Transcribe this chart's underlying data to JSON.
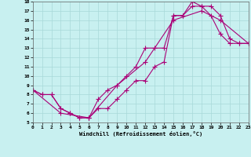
{
  "xlabel": "Windchill (Refroidissement éolien,°C)",
  "bg_color": "#c8f0f0",
  "line_color": "#aa0077",
  "xlim": [
    0,
    23
  ],
  "ylim": [
    5,
    18
  ],
  "xticks": [
    0,
    1,
    2,
    3,
    4,
    5,
    6,
    7,
    8,
    9,
    10,
    11,
    12,
    13,
    14,
    15,
    16,
    17,
    18,
    19,
    20,
    21,
    22,
    23
  ],
  "yticks": [
    5,
    6,
    7,
    8,
    9,
    10,
    11,
    12,
    13,
    14,
    15,
    16,
    17,
    18
  ],
  "line1_x": [
    0,
    1,
    2,
    3,
    4,
    5,
    6,
    7,
    8,
    9,
    10,
    11,
    12,
    13,
    14,
    15,
    16,
    17,
    18,
    19,
    20,
    21,
    22,
    23
  ],
  "line1_y": [
    8.5,
    8.0,
    8.0,
    6.5,
    6.0,
    5.5,
    5.5,
    6.5,
    6.5,
    7.5,
    8.5,
    9.5,
    9.5,
    11.0,
    11.5,
    16.5,
    16.5,
    18.0,
    17.5,
    17.5,
    16.5,
    14.0,
    13.5,
    13.5
  ],
  "line2_x": [
    0,
    1,
    2,
    3,
    4,
    5,
    6,
    7,
    8,
    9,
    10,
    11,
    12,
    13,
    14,
    15,
    16,
    17,
    18,
    19,
    20,
    21,
    22,
    23
  ],
  "line2_y": [
    8.5,
    8.0,
    8.0,
    6.5,
    6.0,
    5.5,
    5.5,
    7.5,
    8.5,
    9.0,
    10.0,
    11.0,
    13.0,
    13.0,
    13.0,
    16.5,
    16.5,
    17.5,
    17.5,
    16.5,
    14.5,
    13.5,
    13.5,
    13.5
  ],
  "line3_x": [
    0,
    3,
    6,
    9,
    12,
    15,
    18,
    20,
    23
  ],
  "line3_y": [
    8.5,
    6.0,
    5.5,
    9.0,
    11.5,
    16.0,
    17.0,
    16.0,
    13.5
  ],
  "grid_color": "#a8d8d8",
  "marker": "+",
  "markersize": 4,
  "lw": 0.8
}
